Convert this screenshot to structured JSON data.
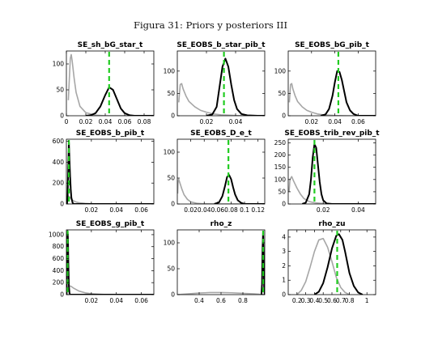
{
  "figure_title": "Figura 31: Priors y posteriors III",
  "colors": {
    "prior": "#a6a6a6",
    "posterior": "#000000",
    "mode": "#22cc22"
  },
  "chart_data": [
    {
      "type": "line",
      "title": "SE_sh_bG_star_t",
      "xlim": [
        0,
        0.09
      ],
      "ylim": [
        0,
        125
      ],
      "xticks": [
        0,
        0.02,
        0.04,
        0.06,
        0.08
      ],
      "xtick_labels": [
        "0",
        "0.02",
        "0.04",
        "0.06",
        "0.08"
      ],
      "yticks": [
        0,
        50,
        100
      ],
      "ytick_labels": [
        "0",
        "50",
        "100"
      ],
      "series": [
        {
          "role": "prior",
          "x": [
            0.002,
            0.003,
            0.004,
            0.005,
            0.006,
            0.008,
            0.01,
            0.014,
            0.02,
            0.03,
            0.04,
            0.05,
            0.06,
            0.07,
            0.08,
            0.09
          ],
          "y": [
            30,
            70,
            110,
            118,
            105,
            72,
            45,
            18,
            6,
            1,
            0,
            0,
            0,
            0,
            0,
            0
          ]
        },
        {
          "role": "posterior",
          "x": [
            0.02,
            0.025,
            0.03,
            0.035,
            0.04,
            0.044,
            0.048,
            0.052,
            0.056,
            0.06,
            0.065,
            0.07,
            0.08,
            0.09
          ],
          "y": [
            0,
            1,
            5,
            18,
            40,
            55,
            50,
            32,
            14,
            5,
            1,
            0,
            0,
            0
          ]
        }
      ],
      "mode": 0.044
    },
    {
      "type": "line",
      "title": "SE_EOBS_b_star_pib_t",
      "xlim": [
        0,
        0.06
      ],
      "ylim": [
        0,
        145
      ],
      "xticks": [
        0.02,
        0.04
      ],
      "xtick_labels": [
        "0.02",
        "0.04"
      ],
      "yticks": [
        0,
        50,
        100
      ],
      "ytick_labels": [
        "0",
        "50",
        "100"
      ],
      "series": [
        {
          "role": "prior",
          "x": [
            0.001,
            0.002,
            0.003,
            0.004,
            0.006,
            0.008,
            0.012,
            0.016,
            0.02,
            0.025,
            0.03,
            0.04,
            0.05,
            0.06
          ],
          "y": [
            30,
            70,
            72,
            60,
            44,
            32,
            20,
            12,
            8,
            4,
            2,
            0.5,
            0,
            0
          ]
        },
        {
          "role": "posterior",
          "x": [
            0.02,
            0.024,
            0.027,
            0.029,
            0.031,
            0.033,
            0.035,
            0.037,
            0.039,
            0.041,
            0.044,
            0.048,
            0.055,
            0.06
          ],
          "y": [
            0,
            3,
            20,
            65,
            110,
            128,
            110,
            70,
            35,
            15,
            4,
            1,
            0,
            0
          ]
        }
      ],
      "mode": 0.032
    },
    {
      "type": "line",
      "title": "SE_EOBS_bG_pib_t",
      "xlim": [
        0,
        0.075
      ],
      "ylim": [
        0,
        145
      ],
      "xticks": [
        0.02,
        0.04,
        0.06
      ],
      "xtick_labels": [
        "0.02",
        "0.04",
        "0.06"
      ],
      "yticks": [
        0,
        50,
        100
      ],
      "ytick_labels": [
        "0",
        "50",
        "100"
      ],
      "series": [
        {
          "role": "prior",
          "x": [
            0.001,
            0.002,
            0.003,
            0.004,
            0.006,
            0.008,
            0.012,
            0.016,
            0.02,
            0.025,
            0.03,
            0.04,
            0.05,
            0.06,
            0.075
          ],
          "y": [
            30,
            70,
            72,
            60,
            44,
            32,
            20,
            12,
            8,
            4,
            2,
            0.5,
            0,
            0,
            0
          ]
        },
        {
          "role": "posterior",
          "x": [
            0.028,
            0.032,
            0.035,
            0.038,
            0.04,
            0.042,
            0.044,
            0.046,
            0.048,
            0.05,
            0.053,
            0.056,
            0.06,
            0.075
          ],
          "y": [
            0,
            3,
            15,
            45,
            75,
            100,
            98,
            80,
            55,
            30,
            12,
            4,
            0,
            0
          ]
        }
      ],
      "mode": 0.043
    },
    {
      "type": "line",
      "title": "SE_EOBS_b_pib_t",
      "xlim": [
        0,
        0.07
      ],
      "ylim": [
        0,
        620
      ],
      "xticks": [
        0.02,
        0.04,
        0.06
      ],
      "xtick_labels": [
        "0.02",
        "0.04",
        "0.06"
      ],
      "yticks": [
        0,
        200,
        400,
        600
      ],
      "ytick_labels": [
        "0",
        "200",
        "400",
        "600"
      ],
      "series": [
        {
          "role": "prior",
          "x": [
            0.0005,
            0.001,
            0.002,
            0.003,
            0.004,
            0.006,
            0.008,
            0.01,
            0.015,
            0.02,
            0.03,
            0.07
          ],
          "y": [
            20,
            60,
            75,
            60,
            44,
            28,
            18,
            12,
            5,
            2,
            0,
            0
          ]
        },
        {
          "role": "posterior",
          "x": [
            0.0005,
            0.001,
            0.0015,
            0.002,
            0.0025,
            0.003,
            0.0035,
            0.004,
            0.005,
            0.006,
            0.07
          ],
          "y": [
            0,
            80,
            350,
            590,
            420,
            260,
            140,
            60,
            10,
            0,
            0
          ]
        }
      ],
      "mode": 0.002
    },
    {
      "type": "line",
      "title": "SE_EOBS_D_e_t",
      "xlim": [
        0,
        0.13
      ],
      "ylim": [
        0,
        125
      ],
      "xticks": [
        0.02,
        0.04,
        0.06,
        0.08,
        0.1,
        0.12
      ],
      "xtick_labels": [
        "0.02",
        "0.04",
        "0.06",
        "0.08",
        "0.1",
        "0.12"
      ],
      "yticks": [
        0,
        50,
        100
      ],
      "ytick_labels": [
        "0",
        "50",
        "100"
      ],
      "series": [
        {
          "role": "prior",
          "x": [
            0.0005,
            0.001,
            0.002,
            0.004,
            0.007,
            0.01,
            0.015,
            0.02,
            0.03,
            0.04,
            0.06,
            0.13
          ],
          "y": [
            20,
            40,
            48,
            40,
            28,
            18,
            9,
            4,
            1,
            0.3,
            0,
            0
          ]
        },
        {
          "role": "posterior",
          "x": [
            0.055,
            0.062,
            0.067,
            0.071,
            0.074,
            0.077,
            0.08,
            0.083,
            0.086,
            0.09,
            0.095,
            0.1,
            0.13
          ],
          "y": [
            0,
            3,
            15,
            35,
            52,
            56,
            48,
            32,
            18,
            7,
            2,
            0,
            0
          ]
        }
      ],
      "mode": 0.076
    },
    {
      "type": "line",
      "title": "SE_EOBS_trib_rev_pib_t",
      "xlim": [
        0,
        0.05
      ],
      "ylim": [
        0,
        265
      ],
      "xticks": [
        0.02,
        0.04
      ],
      "xtick_labels": [
        "0.02",
        "0.04"
      ],
      "yticks": [
        0,
        50,
        100,
        150,
        200,
        250
      ],
      "ytick_labels": [
        "0",
        "50",
        "100",
        "150",
        "200",
        "250"
      ],
      "series": [
        {
          "role": "prior",
          "x": [
            0.0005,
            0.001,
            0.002,
            0.003,
            0.005,
            0.007,
            0.009,
            0.012,
            0.015,
            0.02,
            0.03,
            0.05
          ],
          "y": [
            50,
            100,
            112,
            95,
            65,
            40,
            22,
            10,
            5,
            2,
            0,
            0
          ]
        },
        {
          "role": "posterior",
          "x": [
            0.008,
            0.01,
            0.012,
            0.013,
            0.014,
            0.015,
            0.016,
            0.017,
            0.018,
            0.019,
            0.02,
            0.022,
            0.025,
            0.05
          ],
          "y": [
            0,
            5,
            40,
            100,
            190,
            245,
            230,
            160,
            90,
            40,
            15,
            2,
            0,
            0
          ]
        }
      ],
      "mode": 0.015
    },
    {
      "type": "line",
      "title": "SE_EOBS_g_pib_t",
      "xlim": [
        0,
        0.07
      ],
      "ylim": [
        0,
        1080
      ],
      "xticks": [
        0.02,
        0.04,
        0.06
      ],
      "xtick_labels": [
        "0.02",
        "0.04",
        "0.06"
      ],
      "yticks": [
        0,
        200,
        400,
        600,
        800,
        1000
      ],
      "ytick_labels": [
        "0",
        "200",
        "400",
        "600",
        "800",
        "1000"
      ],
      "series": [
        {
          "role": "prior",
          "x": [
            0.0005,
            0.001,
            0.002,
            0.004,
            0.006,
            0.01,
            0.015,
            0.02,
            0.03,
            0.04,
            0.07
          ],
          "y": [
            50,
            100,
            150,
            135,
            105,
            60,
            30,
            14,
            3,
            0,
            0
          ]
        },
        {
          "role": "posterior",
          "x": [
            0.0002,
            0.0005,
            0.0008,
            0.001,
            0.0013,
            0.0016,
            0.002,
            0.0025,
            0.003,
            0.07
          ],
          "y": [
            0,
            500,
            1000,
            1060,
            900,
            500,
            150,
            20,
            0,
            0
          ]
        }
      ],
      "mode": 0.001
    },
    {
      "type": "line",
      "title": "rho_z",
      "xlim": [
        0.2,
        1.0
      ],
      "ylim": [
        0,
        125
      ],
      "xticks": [
        0.4,
        0.6,
        0.8
      ],
      "xtick_labels": [
        "0.4",
        "0.6",
        "0.8"
      ],
      "yticks": [
        0,
        50,
        100
      ],
      "ytick_labels": [
        "0",
        "50",
        "100"
      ],
      "series": [
        {
          "role": "prior",
          "x": [
            0.2,
            0.3,
            0.4,
            0.5,
            0.6,
            0.7,
            0.8,
            0.9,
            1.0
          ],
          "y": [
            0,
            1.5,
            3,
            4,
            4,
            3.5,
            2.5,
            1.5,
            0
          ]
        },
        {
          "role": "posterior",
          "x": [
            0.97,
            0.975,
            0.98,
            0.985,
            0.99,
            0.995,
            1.0
          ],
          "y": [
            0,
            20,
            90,
            120,
            70,
            10,
            0
          ]
        }
      ],
      "mode": 0.985
    },
    {
      "type": "line",
      "title": "rho_zu",
      "xlim": [
        0.1,
        1.1
      ],
      "ylim": [
        0,
        4.5
      ],
      "xticks": [
        0.2,
        0.3,
        0.4,
        0.5,
        0.6,
        0.7,
        0.8,
        1
      ],
      "xtick_labels": [
        "0.2",
        "0.3",
        "0.4",
        "0.5",
        "0.6",
        "0.7",
        "0.8",
        "1"
      ],
      "yticks": [
        0,
        1,
        2,
        3,
        4
      ],
      "ytick_labels": [
        "0",
        "1",
        "2",
        "3",
        "4"
      ],
      "series": [
        {
          "role": "prior",
          "x": [
            0.2,
            0.25,
            0.3,
            0.35,
            0.4,
            0.45,
            0.5,
            0.55,
            0.6,
            0.65,
            0.7,
            0.75,
            0.8
          ],
          "y": [
            0,
            0.3,
            0.9,
            1.9,
            3.0,
            3.8,
            3.9,
            3.3,
            2.3,
            1.2,
            0.5,
            0.15,
            0
          ]
        },
        {
          "role": "posterior",
          "x": [
            0.4,
            0.45,
            0.5,
            0.55,
            0.6,
            0.65,
            0.68,
            0.72,
            0.75,
            0.8,
            0.85,
            0.9,
            0.95
          ],
          "y": [
            0,
            0.2,
            0.8,
            1.9,
            3.2,
            4.1,
            4.2,
            3.8,
            3.0,
            1.5,
            0.6,
            0.15,
            0
          ]
        }
      ],
      "mode": 0.66
    }
  ]
}
